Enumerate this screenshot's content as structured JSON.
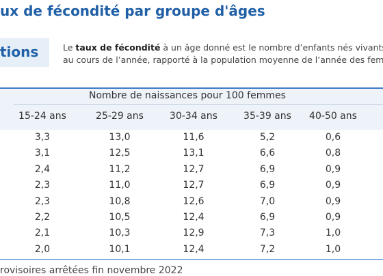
{
  "header": {
    "title": "ux de fécondité par groupe d'âges"
  },
  "section": {
    "label": "tions",
    "text": {
      "before": "Le ",
      "bold": "taux de fécondité",
      "after": " à un âge donné est le nombre d’enfants nés vivants d",
      "line2": "au cours de l’année, rapporté à la population moyenne de l’année des femm"
    }
  },
  "table": {
    "caption": "Nombre de naissances pour 100 femmes",
    "columns": [
      "15-24 ans",
      "25-29 ans",
      "30-34 ans",
      "35-39 ans",
      "40-50 ans"
    ],
    "rows": [
      [
        "3,3",
        "13,0",
        "11,6",
        "5,2",
        "0,6"
      ],
      [
        "3,1",
        "12,5",
        "13,1",
        "6,6",
        "0,8"
      ],
      [
        "2,4",
        "11,2",
        "12,7",
        "6,9",
        "0,9"
      ],
      [
        "2,3",
        "11,0",
        "12,7",
        "6,9",
        "0,9"
      ],
      [
        "2,3",
        "10,8",
        "12,6",
        "7,0",
        "0,9"
      ],
      [
        "2,2",
        "10,5",
        "12,4",
        "6,9",
        "0,9"
      ],
      [
        "2,1",
        "10,3",
        "12,9",
        "7,3",
        "1,0"
      ],
      [
        "2,0",
        "10,1",
        "12,4",
        "7,2",
        "1,0"
      ]
    ]
  },
  "footer": {
    "note": "rovisoires arrêtées fin novembre 2022"
  }
}
